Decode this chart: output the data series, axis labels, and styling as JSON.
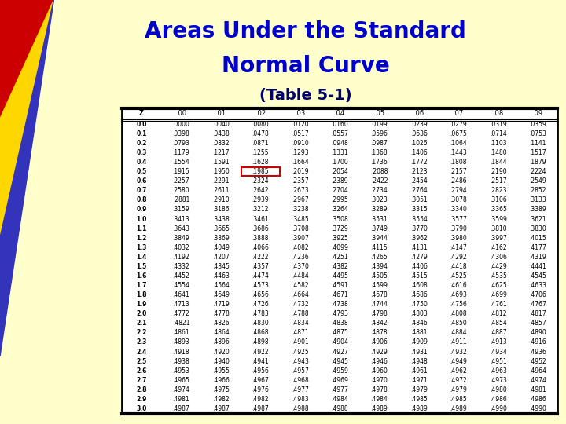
{
  "title_line1": "Areas Under the Standard",
  "title_line2": "Normal Curve",
  "subtitle": "(Table 5-1)",
  "bg_color": "#FFFFCC",
  "title_color": "#0000CC",
  "subtitle_color": "#000066",
  "columns": [
    "Z",
    ".00",
    ".01",
    ".02",
    ".03",
    ".04",
    ".05",
    ".06",
    ".07",
    ".08",
    ".09"
  ],
  "rows": [
    [
      "0.0",
      ".0000",
      ".0040",
      ".0080",
      ".0120",
      ".0160",
      ".0199",
      ".0239",
      ".0279",
      ".0319",
      ".0359"
    ],
    [
      "0.1",
      ".0398",
      ".0438",
      ".0478",
      ".0517",
      ".0557",
      ".0596",
      ".0636",
      ".0675",
      ".0714",
      ".0753"
    ],
    [
      "0.2",
      ".0793",
      ".0832",
      ".0871",
      ".0910",
      ".0948",
      ".0987",
      ".1026",
      ".1064",
      ".1103",
      ".1141"
    ],
    [
      "0.3",
      ".1179",
      ".1217",
      ".1255",
      ".1293",
      ".1331",
      ".1368",
      ".1406",
      ".1443",
      ".1480",
      ".1517"
    ],
    [
      "0.4",
      ".1554",
      ".1591",
      ".1628",
      ".1664",
      ".1700",
      ".1736",
      ".1772",
      ".1808",
      ".1844",
      ".1879"
    ],
    [
      "0.5",
      ".1915",
      ".1950",
      ".1985",
      ".2019",
      ".2054",
      ".2088",
      ".2123",
      ".2157",
      ".2190",
      ".2224"
    ],
    [
      "0.6",
      ".2257",
      ".2291",
      ".2324",
      ".2357",
      ".2389",
      ".2422",
      ".2454",
      ".2486",
      ".2517",
      ".2549"
    ],
    [
      "0.7",
      ".2580",
      ".2611",
      ".2642",
      ".2673",
      ".2704",
      ".2734",
      ".2764",
      ".2794",
      ".2823",
      ".2852"
    ],
    [
      "0.8",
      ".2881",
      ".2910",
      ".2939",
      ".2967",
      ".2995",
      ".3023",
      ".3051",
      ".3078",
      ".3106",
      ".3133"
    ],
    [
      "0.9",
      ".3159",
      ".3186",
      ".3212",
      ".3238",
      ".3264",
      ".3289",
      ".3315",
      ".3340",
      ".3365",
      ".3389"
    ],
    [
      "1.0",
      ".3413",
      ".3438",
      ".3461",
      ".3485",
      ".3508",
      ".3531",
      ".3554",
      ".3577",
      ".3599",
      ".3621"
    ],
    [
      "1.1",
      ".3643",
      ".3665",
      ".3686",
      ".3708",
      ".3729",
      ".3749",
      ".3770",
      ".3790",
      ".3810",
      ".3830"
    ],
    [
      "1.2",
      ".3849",
      ".3869",
      ".3888",
      ".3907",
      ".3925",
      ".3944",
      ".3962",
      ".3980",
      ".3997",
      ".4015"
    ],
    [
      "1.3",
      ".4032",
      ".4049",
      ".4066",
      ".4082",
      ".4099",
      ".4115",
      ".4131",
      ".4147",
      ".4162",
      ".4177"
    ],
    [
      "1.4",
      ".4192",
      ".4207",
      ".4222",
      ".4236",
      ".4251",
      ".4265",
      ".4279",
      ".4292",
      ".4306",
      ".4319"
    ],
    [
      "1.5",
      ".4332",
      ".4345",
      ".4357",
      ".4370",
      ".4382",
      ".4394",
      ".4406",
      ".4418",
      ".4429",
      ".4441"
    ],
    [
      "1.6",
      ".4452",
      ".4463",
      ".4474",
      ".4484",
      ".4495",
      ".4505",
      ".4515",
      ".4525",
      ".4535",
      ".4545"
    ],
    [
      "1.7",
      ".4554",
      ".4564",
      ".4573",
      ".4582",
      ".4591",
      ".4599",
      ".4608",
      ".4616",
      ".4625",
      ".4633"
    ],
    [
      "1.8",
      ".4641",
      ".4649",
      ".4656",
      ".4664",
      ".4671",
      ".4678",
      ".4686",
      ".4693",
      ".4699",
      ".4706"
    ],
    [
      "1.9",
      ".4713",
      ".4719",
      ".4726",
      ".4732",
      ".4738",
      ".4744",
      ".4750",
      ".4756",
      ".4761",
      ".4767"
    ],
    [
      "2.0",
      ".4772",
      ".4778",
      ".4783",
      ".4788",
      ".4793",
      ".4798",
      ".4803",
      ".4808",
      ".4812",
      ".4817"
    ],
    [
      "2.1",
      ".4821",
      ".4826",
      ".4830",
      ".4834",
      ".4838",
      ".4842",
      ".4846",
      ".4850",
      ".4854",
      ".4857"
    ],
    [
      "2.2",
      ".4861",
      ".4864",
      ".4868",
      ".4871",
      ".4875",
      ".4878",
      ".4881",
      ".4884",
      ".4887",
      ".4890"
    ],
    [
      "2.3",
      ".4893",
      ".4896",
      ".4898",
      ".4901",
      ".4904",
      ".4906",
      ".4909",
      ".4911",
      ".4913",
      ".4916"
    ],
    [
      "2.4",
      ".4918",
      ".4920",
      ".4922",
      ".4925",
      ".4927",
      ".4929",
      ".4931",
      ".4932",
      ".4934",
      ".4936"
    ],
    [
      "2.5",
      ".4938",
      ".4940",
      ".4941",
      ".4943",
      ".4945",
      ".4946",
      ".4948",
      ".4949",
      ".4951",
      ".4952"
    ],
    [
      "2.6",
      ".4953",
      ".4955",
      ".4956",
      ".4957",
      ".4959",
      ".4960",
      ".4961",
      ".4962",
      ".4963",
      ".4964"
    ],
    [
      "2.7",
      ".4965",
      ".4966",
      ".4967",
      ".4968",
      ".4969",
      ".4970",
      ".4971",
      ".4972",
      ".4973",
      ".4974"
    ],
    [
      "2.8",
      ".4974",
      ".4975",
      ".4976",
      ".4977",
      ".4977",
      ".4978",
      ".4979",
      ".4979",
      ".4980",
      ".4981"
    ],
    [
      "2.9",
      ".4981",
      ".4982",
      ".4982",
      ".4983",
      ".4984",
      ".4984",
      ".4985",
      ".4985",
      ".4986",
      ".4986"
    ],
    [
      "3.0",
      ".4987",
      ".4987",
      ".4987",
      ".4988",
      ".4988",
      ".4989",
      ".4989",
      ".4989",
      ".4990",
      ".4990"
    ]
  ],
  "highlight_row": 5,
  "highlight_col": 3,
  "tri_red": "#CC0000",
  "tri_yellow": "#FFD700",
  "tri_blue": "#3333BB"
}
